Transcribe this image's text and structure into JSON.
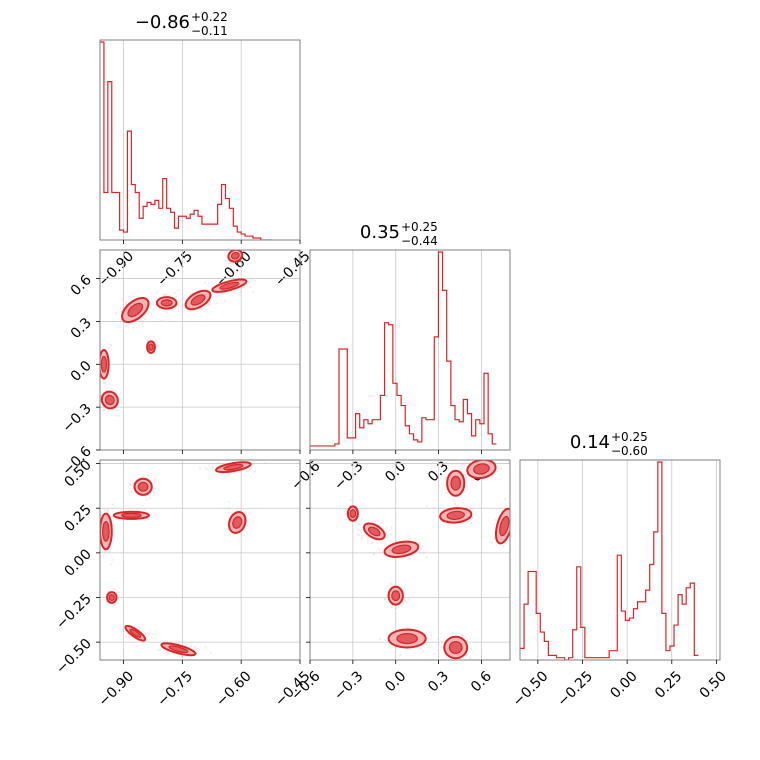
{
  "colors": {
    "accent": "#d62728",
    "fill_dark": "#e05a5e",
    "fill_light": "#f4b6b8",
    "samples": "#f7b8bb"
  },
  "chart_data": [
    {
      "type": "histogram",
      "panel": "p00",
      "title": {
        "median": "−0.86",
        "plus": "+0.22",
        "minus": "−0.11"
      },
      "bin_start": -0.96,
      "bin_width": 0.01,
      "counts": [
        100,
        24,
        80,
        24,
        24,
        5,
        4,
        55,
        28,
        24,
        11,
        17,
        19,
        18,
        20,
        16,
        31,
        16,
        14,
        6,
        12,
        12,
        11,
        13,
        15,
        12,
        8,
        8,
        8,
        8,
        18,
        28,
        21,
        16,
        7,
        4,
        3,
        2,
        2,
        1,
        1,
        0,
        0,
        0
      ],
      "xlim": [
        -0.96,
        -0.45
      ],
      "xticks": [
        -0.9,
        -0.75,
        -0.6,
        -0.45
      ],
      "xtick_labels": [
        "−0.90",
        "−0.75",
        "−0.60",
        "−0.45"
      ]
    },
    {
      "type": "contour",
      "panel": "p10",
      "xlim": [
        -0.96,
        -0.45
      ],
      "ylim": [
        -0.6,
        0.8
      ],
      "xticks": [
        -0.9,
        -0.75,
        -0.6,
        -0.45
      ],
      "yticks": [
        -0.6,
        -0.3,
        0.0,
        0.3,
        0.6
      ],
      "ytick_labels": [
        "−0.6",
        "−0.3",
        "0.0",
        "0.3",
        "0.6"
      ],
      "blobs": [
        {
          "x": -0.615,
          "y": 0.76,
          "rx": 0.018,
          "ry": 0.04,
          "rot": -20
        },
        {
          "x": -0.63,
          "y": 0.55,
          "rx": 0.045,
          "ry": 0.03,
          "rot": -15
        },
        {
          "x": -0.71,
          "y": 0.45,
          "rx": 0.035,
          "ry": 0.05,
          "rot": -30
        },
        {
          "x": -0.79,
          "y": 0.43,
          "rx": 0.025,
          "ry": 0.04,
          "rot": 0
        },
        {
          "x": -0.87,
          "y": 0.38,
          "rx": 0.04,
          "ry": 0.06,
          "rot": -40
        },
        {
          "x": -0.95,
          "y": 0.0,
          "rx": 0.012,
          "ry": 0.1,
          "rot": 0
        },
        {
          "x": -0.935,
          "y": -0.25,
          "rx": 0.02,
          "ry": 0.06,
          "rot": -30
        },
        {
          "x": -0.83,
          "y": 0.12,
          "rx": 0.01,
          "ry": 0.04,
          "rot": 0
        }
      ]
    },
    {
      "type": "histogram",
      "panel": "p11",
      "title": {
        "median": "0.35",
        "plus": "+0.25",
        "minus": "−0.44"
      },
      "bin_start": -0.6,
      "bin_width": 0.029,
      "counts": [
        2,
        2,
        2,
        2,
        2,
        2,
        3,
        50,
        50,
        6,
        6,
        18,
        11,
        15,
        13,
        15,
        15,
        27,
        63,
        62,
        33,
        27,
        22,
        12,
        8,
        5,
        4,
        16,
        15,
        15,
        56,
        98,
        79,
        44,
        22,
        15,
        14,
        25,
        18,
        7,
        15,
        13,
        38,
        8,
        3
      ],
      "xlim": [
        -0.6,
        0.8
      ],
      "xticks": [
        -0.6,
        -0.3,
        0.0,
        0.3,
        0.6
      ],
      "xtick_labels": [
        "−0.6",
        "−0.3",
        "0.0",
        "0.3",
        "0.6"
      ]
    },
    {
      "type": "contour",
      "panel": "p20",
      "xlim": [
        -0.96,
        -0.45
      ],
      "ylim": [
        -0.6,
        0.52
      ],
      "xticks": [
        -0.9,
        -0.75,
        -0.6,
        -0.45
      ],
      "xtick_labels": [
        "−0.90",
        "−0.75",
        "−0.60",
        "−0.45"
      ],
      "yticks": [
        -0.5,
        -0.25,
        0.0,
        0.25,
        0.5
      ],
      "ytick_labels": [
        "−0.50",
        "−0.25",
        "0.00",
        "0.25",
        "0.50"
      ],
      "blobs": [
        {
          "x": -0.62,
          "y": 0.48,
          "rx": 0.045,
          "ry": 0.022,
          "rot": -10
        },
        {
          "x": -0.85,
          "y": 0.37,
          "rx": 0.022,
          "ry": 0.045,
          "rot": 0
        },
        {
          "x": -0.88,
          "y": 0.21,
          "rx": 0.045,
          "ry": 0.02,
          "rot": 0
        },
        {
          "x": -0.945,
          "y": 0.12,
          "rx": 0.015,
          "ry": 0.1,
          "rot": 0
        },
        {
          "x": -0.61,
          "y": 0.17,
          "rx": 0.02,
          "ry": 0.06,
          "rot": 20
        },
        {
          "x": -0.93,
          "y": -0.25,
          "rx": 0.012,
          "ry": 0.03,
          "rot": 0
        },
        {
          "x": -0.87,
          "y": -0.45,
          "rx": 0.03,
          "ry": 0.02,
          "rot": 35
        },
        {
          "x": -0.76,
          "y": -0.54,
          "rx": 0.045,
          "ry": 0.022,
          "rot": 15
        }
      ]
    },
    {
      "type": "contour",
      "panel": "p21",
      "xlim": [
        -0.6,
        0.8
      ],
      "ylim": [
        -0.6,
        0.52
      ],
      "xticks": [
        -0.6,
        -0.3,
        0.0,
        0.3,
        0.6
      ],
      "xtick_labels": [
        "−0.6",
        "−0.3",
        "0.0",
        "0.3",
        "0.6"
      ],
      "yticks": [
        -0.5,
        -0.25,
        0.0,
        0.25,
        0.5
      ],
      "blobs": [
        {
          "x": 0.6,
          "y": 0.47,
          "rx": 0.1,
          "ry": 0.05,
          "rot": -10
        },
        {
          "x": 0.42,
          "y": 0.39,
          "rx": 0.06,
          "ry": 0.07,
          "rot": 0
        },
        {
          "x": 0.42,
          "y": 0.21,
          "rx": 0.11,
          "ry": 0.04,
          "rot": -5
        },
        {
          "x": 0.76,
          "y": 0.15,
          "rx": 0.05,
          "ry": 0.1,
          "rot": 15
        },
        {
          "x": -0.3,
          "y": 0.22,
          "rx": 0.035,
          "ry": 0.04,
          "rot": 0
        },
        {
          "x": -0.15,
          "y": 0.12,
          "rx": 0.08,
          "ry": 0.035,
          "rot": 30
        },
        {
          "x": 0.04,
          "y": 0.02,
          "rx": 0.12,
          "ry": 0.04,
          "rot": -10
        },
        {
          "x": 0.0,
          "y": -0.24,
          "rx": 0.05,
          "ry": 0.05,
          "rot": 0
        },
        {
          "x": 0.08,
          "y": -0.48,
          "rx": 0.13,
          "ry": 0.05,
          "rot": 0
        },
        {
          "x": 0.42,
          "y": -0.53,
          "rx": 0.08,
          "ry": 0.06,
          "rot": 0
        }
      ]
    },
    {
      "type": "histogram",
      "panel": "p22",
      "title": {
        "median": "0.14",
        "plus": "+0.25",
        "minus": "−0.60"
      },
      "bin_start": -0.6,
      "bin_width": 0.0227,
      "counts": [
        5,
        24,
        38,
        38,
        20,
        12,
        8,
        2,
        2,
        1,
        1,
        0,
        1,
        13,
        40,
        14,
        1,
        1,
        1,
        1,
        1,
        1,
        4,
        4,
        45,
        21,
        17,
        18,
        22,
        25,
        25,
        30,
        41,
        55,
        85,
        20,
        4,
        6,
        15,
        28,
        24,
        31,
        33,
        2
      ],
      "xlim": [
        -0.6,
        0.52
      ],
      "xticks": [
        -0.5,
        -0.25,
        0.0,
        0.25,
        0.5
      ],
      "xtick_labels": [
        "−0.50",
        "−0.25",
        "0.00",
        "0.25",
        "0.50"
      ]
    }
  ]
}
